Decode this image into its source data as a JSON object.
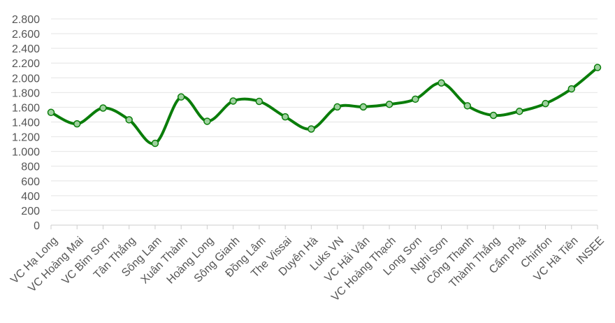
{
  "chart_data": {
    "type": "line",
    "title": "",
    "xlabel": "",
    "ylabel": "",
    "ylim": [
      0,
      2800
    ],
    "y_ticks": [
      0,
      200,
      400,
      600,
      800,
      1000,
      1200,
      1400,
      1600,
      1800,
      2000,
      2200,
      2400,
      2600,
      2800
    ],
    "y_tick_labels": [
      "0",
      "200",
      "400",
      "600",
      "800",
      "1.000",
      "1.200",
      "1.400",
      "1.600",
      "1.800",
      "2.000",
      "2.200",
      "2.400",
      "2.600",
      "2.800"
    ],
    "categories": [
      "VC Hạ Long",
      "VC Hoàng Mai",
      "VC Bỉm Sơn",
      "Tân Thắng",
      "Sông Lam",
      "Xuân Thành",
      "Hoàng Long",
      "Sông Gianh",
      "Đồng Lâm",
      "The Vissai",
      "Duyên Hà",
      "Luks VN",
      "VC Hải Vân",
      "VC Hoàng Thạch",
      "Long Sơn",
      "Nghi Sơn",
      "Công Thanh",
      "Thành Thắng",
      "Cẩm Phả",
      "Chinfon",
      "VC Hà Tiên",
      "INSEE"
    ],
    "series": [
      {
        "values": [
          1530,
          1375,
          1590,
          1430,
          1110,
          1740,
          1410,
          1685,
          1680,
          1470,
          1305,
          1605,
          1605,
          1640,
          1710,
          1930,
          1620,
          1490,
          1545,
          1650,
          1850,
          2140
        ]
      }
    ],
    "grid": true,
    "smooth": true,
    "legend": "none",
    "colors": {
      "line": "#0a7d0a",
      "marker_fill": "#9ed19e",
      "marker_stroke": "#0a7d0a"
    }
  }
}
